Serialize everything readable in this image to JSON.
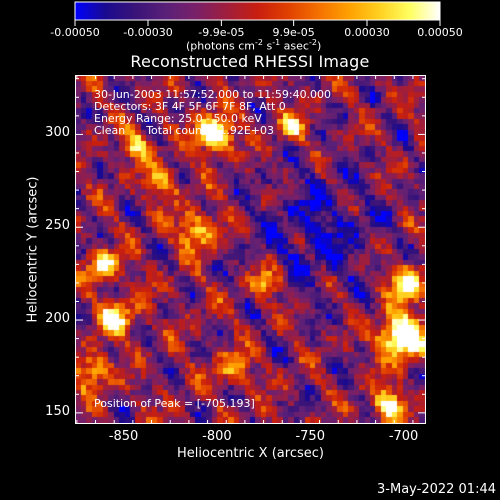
{
  "colorbar": {
    "tick_labels": [
      "-0.00050",
      "-0.00030",
      "-9.9e-05",
      "9.9e-05",
      "0.00030",
      "0.00050"
    ],
    "tick_values": [
      -0.0005,
      -0.0003,
      -9.9e-05,
      9.9e-05,
      0.0003,
      0.0005
    ],
    "range": [
      -0.0005,
      0.0005
    ],
    "units_text": "(photons cm",
    "units_sup1": "-2",
    "units_mid": " s",
    "units_sup2": "-1",
    "units_mid2": " asec",
    "units_sup3": "-2",
    "units_end": ")",
    "colors": [
      "#0000ff",
      "#1a0a90",
      "#3a1478",
      "#5a2078",
      "#7a2068",
      "#a01e3c",
      "#c81e10",
      "#e04000",
      "#f47000",
      "#ffa000",
      "#ffd020",
      "#ffff60",
      "#ffffff"
    ]
  },
  "chart_data": {
    "type": "heatmap",
    "title": "Reconstructed RHESSI Image",
    "xlabel": "Heliocentric X (arcsec)",
    "ylabel": "Heliocentric Y (arcsec)",
    "xlim": [
      -876,
      -688
    ],
    "ylim": [
      144,
      332
    ],
    "x_ticks": [
      -850,
      -800,
      -750,
      -700
    ],
    "x_tick_labels": [
      "-850",
      "-800",
      "-750",
      "-700"
    ],
    "y_ticks": [
      150,
      200,
      250,
      300
    ],
    "y_tick_labels": [
      "150",
      "200",
      "250",
      "300"
    ],
    "peak_position": [
      -705,
      193
    ],
    "grid_size": 64,
    "annotations": {
      "time_range": "30-Jun-2003 11:57:52.000 to 11:59:40.000",
      "detectors": "Detectors: 3F 4F 5F 6F 7F 8F, Att 0",
      "energy": "Energy Range: 25.0 - 50.0 keV",
      "clean": "Clean      Total counts: 1.92E+03",
      "peak": "Position of Peak = [-705,193]"
    }
  },
  "footer": {
    "date": "3-May-2022 01:44"
  }
}
